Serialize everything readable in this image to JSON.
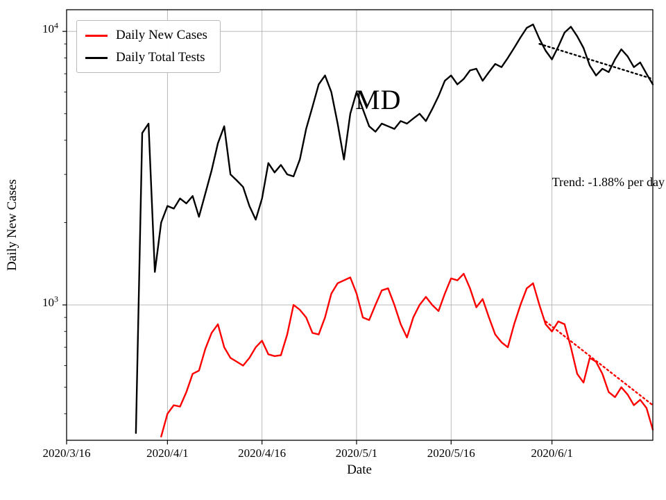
{
  "figure": {
    "state_label": "MD",
    "trend_label": "Trend: -1.88% per day",
    "xlabel": "Date",
    "ylabel": "Daily New Cases"
  },
  "legend": {
    "entries": [
      {
        "label": "Daily New Cases",
        "color": "#ff0000"
      },
      {
        "label": "Daily Total Tests",
        "color": "#000000"
      }
    ]
  },
  "chart_data": {
    "type": "line",
    "title": "",
    "xlabel": "Date",
    "ylabel": "Daily New Cases",
    "yscale": "log",
    "grid": true,
    "legend_position": "upper-left",
    "xlim": [
      "2020-03-16",
      "2020-06-17"
    ],
    "ylim": [
      320,
      12000
    ],
    "x_ticks": [
      {
        "date": "2020-03-16",
        "label": "2020/3/16"
      },
      {
        "date": "2020-04-01",
        "label": "2020/4/1"
      },
      {
        "date": "2020-04-16",
        "label": "2020/4/16"
      },
      {
        "date": "2020-05-01",
        "label": "2020/5/1"
      },
      {
        "date": "2020-05-16",
        "label": "2020/5/16"
      },
      {
        "date": "2020-06-01",
        "label": "2020/6/1"
      }
    ],
    "y_ticks": [
      {
        "value": 1000,
        "base": "10",
        "exp": "3"
      },
      {
        "value": 10000,
        "base": "10",
        "exp": "4"
      }
    ],
    "annotations": [
      {
        "text": "MD"
      },
      {
        "text": "Trend: -1.88% per day"
      }
    ],
    "series": [
      {
        "name": "Daily Total Tests",
        "color": "#000000",
        "style": "solid",
        "points": [
          [
            "2020-03-27",
            340
          ],
          [
            "2020-03-28",
            4250
          ],
          [
            "2020-03-29",
            4600
          ],
          [
            "2020-03-30",
            1320
          ],
          [
            "2020-03-31",
            2000
          ],
          [
            "2020-04-01",
            2300
          ],
          [
            "2020-04-02",
            2250
          ],
          [
            "2020-04-03",
            2450
          ],
          [
            "2020-04-04",
            2350
          ],
          [
            "2020-04-05",
            2500
          ],
          [
            "2020-04-06",
            2100
          ],
          [
            "2020-04-07",
            2550
          ],
          [
            "2020-04-08",
            3100
          ],
          [
            "2020-04-09",
            3900
          ],
          [
            "2020-04-10",
            4500
          ],
          [
            "2020-04-11",
            3000
          ],
          [
            "2020-04-12",
            2850
          ],
          [
            "2020-04-13",
            2700
          ],
          [
            "2020-04-14",
            2300
          ],
          [
            "2020-04-15",
            2050
          ],
          [
            "2020-04-16",
            2450
          ],
          [
            "2020-04-17",
            3300
          ],
          [
            "2020-04-18",
            3050
          ],
          [
            "2020-04-19",
            3250
          ],
          [
            "2020-04-20",
            3000
          ],
          [
            "2020-04-21",
            2950
          ],
          [
            "2020-04-22",
            3400
          ],
          [
            "2020-04-23",
            4400
          ],
          [
            "2020-04-24",
            5300
          ],
          [
            "2020-04-25",
            6400
          ],
          [
            "2020-04-26",
            6900
          ],
          [
            "2020-04-27",
            6000
          ],
          [
            "2020-04-28",
            4600
          ],
          [
            "2020-04-29",
            3400
          ],
          [
            "2020-04-30",
            5000
          ],
          [
            "2020-05-01",
            6000
          ],
          [
            "2020-05-02",
            5200
          ],
          [
            "2020-05-03",
            4500
          ],
          [
            "2020-05-04",
            4300
          ],
          [
            "2020-05-05",
            4600
          ],
          [
            "2020-05-06",
            4500
          ],
          [
            "2020-05-07",
            4400
          ],
          [
            "2020-05-08",
            4700
          ],
          [
            "2020-05-09",
            4600
          ],
          [
            "2020-05-10",
            4800
          ],
          [
            "2020-05-11",
            5000
          ],
          [
            "2020-05-12",
            4700
          ],
          [
            "2020-05-13",
            5200
          ],
          [
            "2020-05-14",
            5800
          ],
          [
            "2020-05-15",
            6600
          ],
          [
            "2020-05-16",
            6900
          ],
          [
            "2020-05-17",
            6400
          ],
          [
            "2020-05-18",
            6700
          ],
          [
            "2020-05-19",
            7200
          ],
          [
            "2020-05-20",
            7300
          ],
          [
            "2020-05-21",
            6600
          ],
          [
            "2020-05-22",
            7100
          ],
          [
            "2020-05-23",
            7600
          ],
          [
            "2020-05-24",
            7400
          ],
          [
            "2020-05-25",
            8000
          ],
          [
            "2020-05-26",
            8700
          ],
          [
            "2020-05-27",
            9500
          ],
          [
            "2020-05-28",
            10300
          ],
          [
            "2020-05-29",
            10600
          ],
          [
            "2020-05-30",
            9400
          ],
          [
            "2020-05-31",
            8500
          ],
          [
            "2020-06-01",
            7900
          ],
          [
            "2020-06-02",
            8800
          ],
          [
            "2020-06-03",
            9900
          ],
          [
            "2020-06-04",
            10400
          ],
          [
            "2020-06-05",
            9600
          ],
          [
            "2020-06-06",
            8700
          ],
          [
            "2020-06-07",
            7500
          ],
          [
            "2020-06-08",
            6900
          ],
          [
            "2020-06-09",
            7300
          ],
          [
            "2020-06-10",
            7100
          ],
          [
            "2020-06-11",
            7900
          ],
          [
            "2020-06-12",
            8600
          ],
          [
            "2020-06-13",
            8100
          ],
          [
            "2020-06-14",
            7400
          ],
          [
            "2020-06-15",
            7700
          ],
          [
            "2020-06-16",
            7000
          ],
          [
            "2020-06-17",
            6400
          ]
        ]
      },
      {
        "name": "Daily New Cases",
        "color": "#ff0000",
        "style": "solid",
        "points": [
          [
            "2020-03-31",
            330
          ],
          [
            "2020-04-01",
            400
          ],
          [
            "2020-04-02",
            430
          ],
          [
            "2020-04-03",
            425
          ],
          [
            "2020-04-04",
            480
          ],
          [
            "2020-04-05",
            560
          ],
          [
            "2020-04-06",
            575
          ],
          [
            "2020-04-07",
            690
          ],
          [
            "2020-04-08",
            790
          ],
          [
            "2020-04-09",
            850
          ],
          [
            "2020-04-10",
            700
          ],
          [
            "2020-04-11",
            640
          ],
          [
            "2020-04-12",
            620
          ],
          [
            "2020-04-13",
            600
          ],
          [
            "2020-04-14",
            640
          ],
          [
            "2020-04-15",
            700
          ],
          [
            "2020-04-16",
            740
          ],
          [
            "2020-04-17",
            660
          ],
          [
            "2020-04-18",
            650
          ],
          [
            "2020-04-19",
            655
          ],
          [
            "2020-04-20",
            780
          ],
          [
            "2020-04-21",
            1000
          ],
          [
            "2020-04-22",
            960
          ],
          [
            "2020-04-23",
            900
          ],
          [
            "2020-04-24",
            790
          ],
          [
            "2020-04-25",
            780
          ],
          [
            "2020-04-26",
            900
          ],
          [
            "2020-04-27",
            1100
          ],
          [
            "2020-04-28",
            1200
          ],
          [
            "2020-04-29",
            1230
          ],
          [
            "2020-04-30",
            1260
          ],
          [
            "2020-05-01",
            1100
          ],
          [
            "2020-05-02",
            900
          ],
          [
            "2020-05-03",
            880
          ],
          [
            "2020-05-04",
            1000
          ],
          [
            "2020-05-05",
            1130
          ],
          [
            "2020-05-06",
            1150
          ],
          [
            "2020-05-07",
            1000
          ],
          [
            "2020-05-08",
            850
          ],
          [
            "2020-05-09",
            760
          ],
          [
            "2020-05-10",
            900
          ],
          [
            "2020-05-11",
            1000
          ],
          [
            "2020-05-12",
            1070
          ],
          [
            "2020-05-13",
            1000
          ],
          [
            "2020-05-14",
            950
          ],
          [
            "2020-05-15",
            1100
          ],
          [
            "2020-05-16",
            1250
          ],
          [
            "2020-05-17",
            1230
          ],
          [
            "2020-05-18",
            1300
          ],
          [
            "2020-05-19",
            1150
          ],
          [
            "2020-05-20",
            980
          ],
          [
            "2020-05-21",
            1050
          ],
          [
            "2020-05-22",
            900
          ],
          [
            "2020-05-23",
            780
          ],
          [
            "2020-05-24",
            730
          ],
          [
            "2020-05-25",
            700
          ],
          [
            "2020-05-26",
            850
          ],
          [
            "2020-05-27",
            1000
          ],
          [
            "2020-05-28",
            1150
          ],
          [
            "2020-05-29",
            1200
          ],
          [
            "2020-05-30",
            1000
          ],
          [
            "2020-05-31",
            850
          ],
          [
            "2020-06-01",
            800
          ],
          [
            "2020-06-02",
            870
          ],
          [
            "2020-06-03",
            850
          ],
          [
            "2020-06-04",
            700
          ],
          [
            "2020-06-05",
            560
          ],
          [
            "2020-06-06",
            520
          ],
          [
            "2020-06-07",
            640
          ],
          [
            "2020-06-08",
            620
          ],
          [
            "2020-06-09",
            560
          ],
          [
            "2020-06-10",
            480
          ],
          [
            "2020-06-11",
            460
          ],
          [
            "2020-06-12",
            500
          ],
          [
            "2020-06-13",
            470
          ],
          [
            "2020-06-14",
            430
          ],
          [
            "2020-06-15",
            450
          ],
          [
            "2020-06-16",
            420
          ],
          [
            "2020-06-17",
            350
          ]
        ]
      },
      {
        "name": "Daily Total Tests trend",
        "color": "#000000",
        "style": "dotted",
        "points": [
          [
            "2020-05-30",
            9000
          ],
          [
            "2020-06-17",
            6700
          ]
        ]
      },
      {
        "name": "Daily New Cases trend",
        "color": "#ff0000",
        "style": "dotted",
        "points": [
          [
            "2020-05-31",
            870
          ],
          [
            "2020-06-17",
            430
          ]
        ]
      }
    ]
  }
}
